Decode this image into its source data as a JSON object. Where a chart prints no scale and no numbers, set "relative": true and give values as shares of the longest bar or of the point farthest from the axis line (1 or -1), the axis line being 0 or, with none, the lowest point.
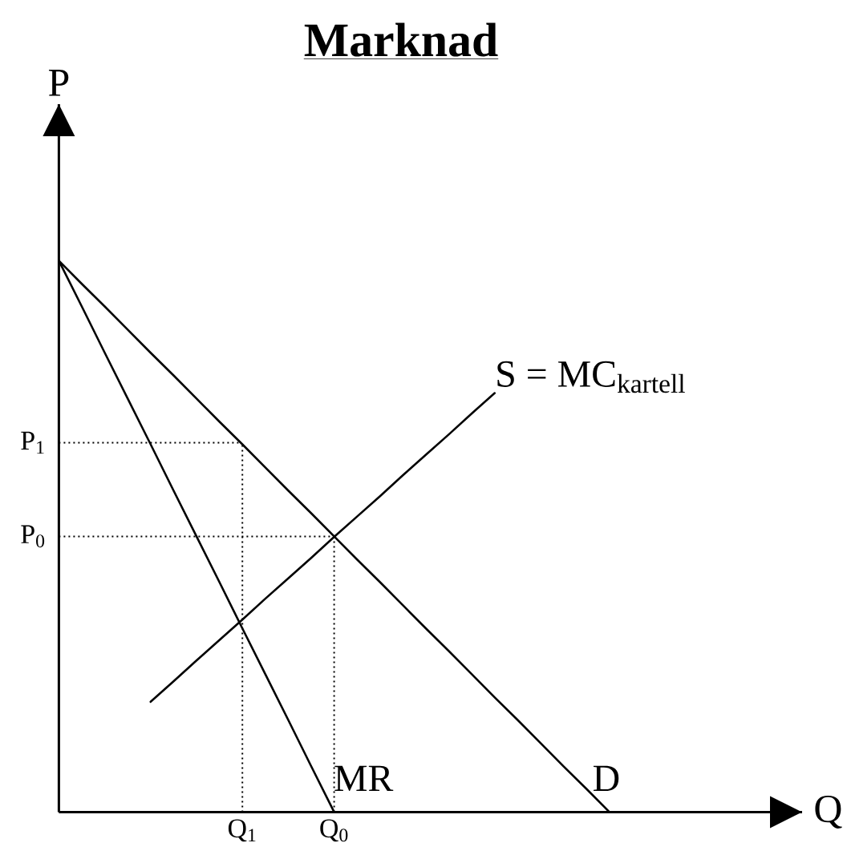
{
  "chart_data": {
    "type": "line",
    "title": "Marknad",
    "xlabel": "Q",
    "ylabel": "P",
    "relative": true,
    "categories": [
      null,
      null,
      null,
      null,
      null,
      null,
      null,
      null,
      "Q$_{1}$",
      null,
      null,
      null,
      "Q$_{0}$",
      null,
      null,
      null,
      null,
      null,
      null,
      null,
      null,
      null,
      null,
      null,
      null
    ],
    "ref_lines": [
      {
        "axis": "y",
        "value": 0.67,
        "label": "P$_{1}$",
        "color": "#000000",
        "line_style": "dotted"
      },
      {
        "axis": "y",
        "value": 0.5,
        "label": "P$_{0}$",
        "color": "#000000",
        "line_style": "dotted"
      },
      {
        "axis": "x",
        "value": "Q$_{1}$",
        "color": "#000000",
        "line_style": "dotted"
      },
      {
        "axis": "x",
        "value": "Q$_{0}$",
        "color": "#000000",
        "line_style": "dotted"
      }
    ],
    "series": [
      {
        "name": "D",
        "color": "#000000",
        "line_style": "solid",
        "values": [
          1,
          0.958,
          0.917,
          0.875,
          0.833,
          0.792,
          0.75,
          0.708,
          0.667,
          0.625,
          0.583,
          0.542,
          0.5,
          0.458,
          0.417,
          0.375,
          0.333,
          0.292,
          0.25,
          0.208,
          0.167,
          0.125,
          0.083,
          0.042,
          0
        ]
      },
      {
        "name": "MR",
        "color": "#000000",
        "line_style": "solid",
        "values": [
          1,
          0.917,
          0.833,
          0.75,
          0.667,
          0.583,
          0.5,
          0.417,
          0.333,
          0.25,
          0.167,
          0.083,
          0,
          null,
          null,
          null,
          null,
          null,
          null,
          null,
          null,
          null,
          null,
          null,
          null
        ]
      },
      {
        "name": "S = MC$_{kartell}$",
        "color": "#000000",
        "line_style": "solid",
        "values": [
          null,
          null,
          null,
          null,
          0.2,
          0.237,
          0.275,
          0.312,
          0.349,
          0.387,
          0.424,
          0.461,
          0.499,
          0.536,
          0.573,
          0.611,
          0.648,
          0.685,
          0.723,
          0.76,
          null,
          null,
          null,
          null,
          null
        ]
      }
    ]
  }
}
